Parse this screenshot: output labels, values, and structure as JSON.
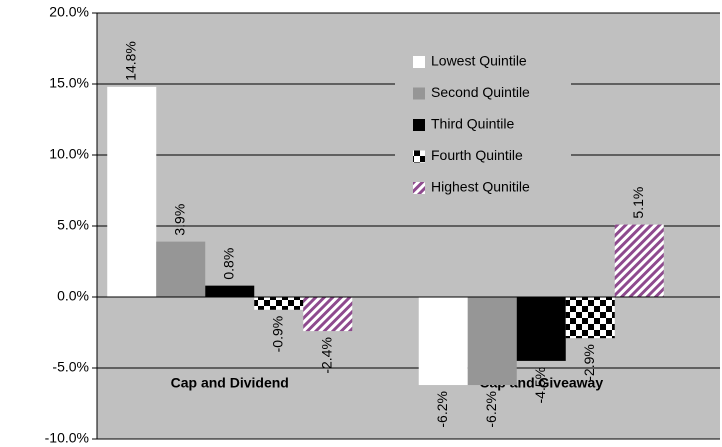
{
  "chart_data": {
    "type": "bar",
    "categories": [
      "Cap and Dividend",
      "Cap and Giveaway"
    ],
    "series": [
      {
        "name": "Lowest Quintile",
        "color": "#ffffff",
        "values": [
          14.8,
          -6.2
        ],
        "value_labels": [
          "14.8%",
          "-6.2%"
        ]
      },
      {
        "name": "Second Quintile",
        "color": "#969696",
        "values": [
          3.9,
          -6.2
        ],
        "value_labels": [
          "3.9%",
          "-6.2%"
        ]
      },
      {
        "name": "Third Quintile",
        "color": "#000000",
        "values": [
          0.8,
          -4.5
        ],
        "value_labels": [
          "0.8%",
          "-4.5%"
        ]
      },
      {
        "name": "Fourth Quintile",
        "color": "#000000",
        "pattern": "checker",
        "values": [
          -0.9,
          -2.9
        ],
        "value_labels": [
          "-0.9%",
          "-2.9%"
        ]
      },
      {
        "name": "Highest Qunitile",
        "color": "#8e4a8e",
        "pattern": "diagonal",
        "values": [
          -2.4,
          5.1
        ],
        "value_labels": [
          "-2.4%",
          "5.1%"
        ]
      }
    ],
    "ylim": [
      -10,
      20
    ],
    "yticks": [
      {
        "value": -10,
        "label": "-10.0%"
      },
      {
        "value": -5,
        "label": "-5.0%"
      },
      {
        "value": 0,
        "label": "0.0%"
      },
      {
        "value": 5,
        "label": "5.0%"
      },
      {
        "value": 10,
        "label": "10.0%"
      },
      {
        "value": 15,
        "label": "15.0%"
      },
      {
        "value": 20,
        "label": "20.0%"
      }
    ],
    "grid": true,
    "legend": "top-right"
  }
}
